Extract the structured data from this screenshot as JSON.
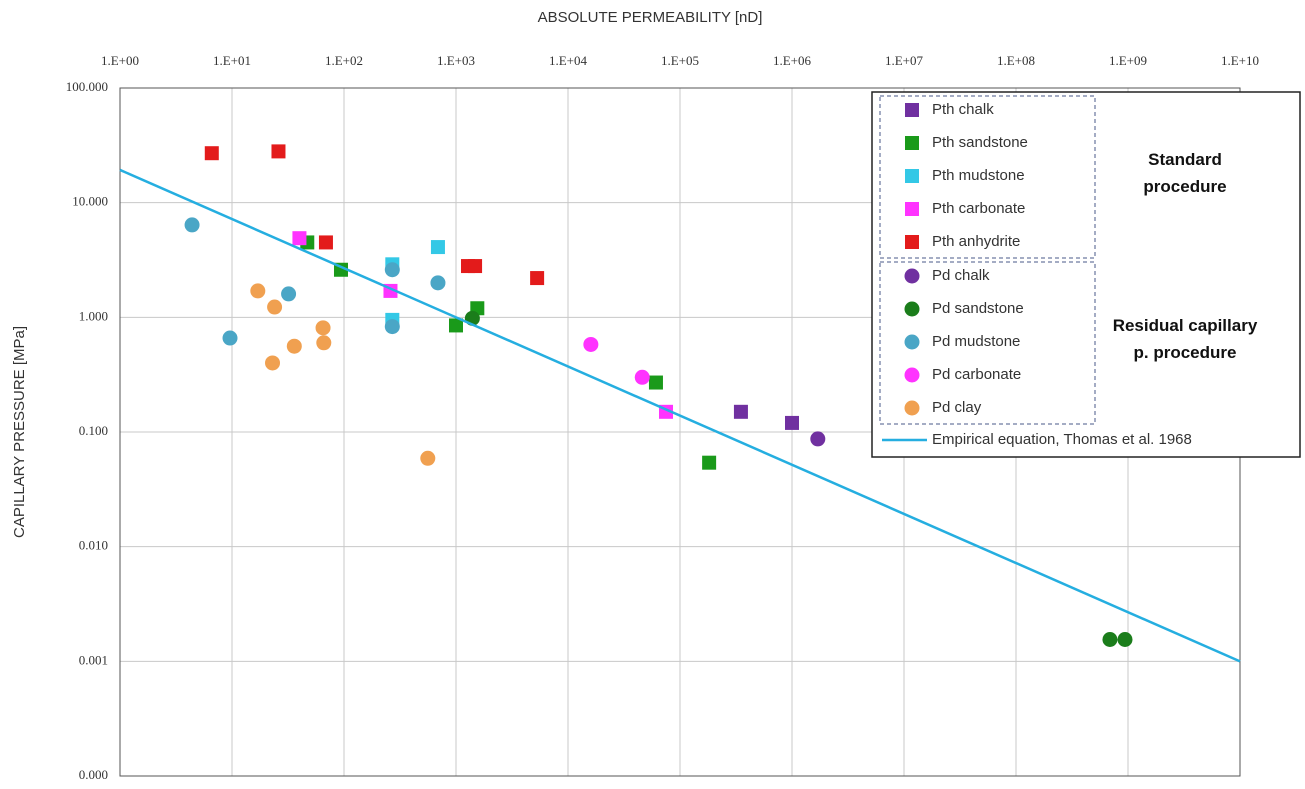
{
  "chart_data": {
    "type": "scatter",
    "x_label": "ABSOLUTE PERMEABILITY [nD]",
    "y_label": "CAPILLARY PRESSURE [MPa]",
    "x_log": true,
    "y_log": true,
    "grid": true,
    "xlim": [
      1,
      10000000000
    ],
    "ylim": [
      0.0001,
      100
    ],
    "xticks": [
      {
        "value": 1,
        "label": "1.E+00"
      },
      {
        "value": 10,
        "label": "1.E+01"
      },
      {
        "value": 100,
        "label": "1.E+02"
      },
      {
        "value": 1000,
        "label": "1.E+03"
      },
      {
        "value": 10000,
        "label": "1.E+04"
      },
      {
        "value": 100000,
        "label": "1.E+05"
      },
      {
        "value": 1000000,
        "label": "1.E+06"
      },
      {
        "value": 10000000,
        "label": "1.E+07"
      },
      {
        "value": 100000000,
        "label": "1.E+08"
      },
      {
        "value": 1000000000,
        "label": "1.E+09"
      },
      {
        "value": 10000000000,
        "label": "1.E+10"
      }
    ],
    "yticks": [
      {
        "value": 0.0001,
        "label": "0.000"
      },
      {
        "value": 0.001,
        "label": "0.001"
      },
      {
        "value": 0.01,
        "label": "0.010"
      },
      {
        "value": 0.1,
        "label": "0.100"
      },
      {
        "value": 1,
        "label": "1.000"
      },
      {
        "value": 10,
        "label": "10.000"
      },
      {
        "value": 100,
        "label": "100.000"
      }
    ],
    "legend_position": "upper right",
    "legend_groups": [
      {
        "label": [
          "Standard",
          "procedure"
        ]
      },
      {
        "label": [
          "Residual capillary",
          "p. procedure"
        ]
      }
    ],
    "series": [
      {
        "name": "Pth chalk",
        "marker": "square",
        "color": "#7030a0",
        "group": 0,
        "x": [
          350000,
          1000000
        ],
        "values": [
          0.15,
          0.12
        ]
      },
      {
        "name": "Pth sandstone",
        "marker": "square",
        "color": "#1a9a1a",
        "group": 0,
        "x": [
          47,
          94,
          1000,
          1550,
          61000,
          182000
        ],
        "values": [
          4.5,
          2.6,
          0.85,
          1.2,
          0.27,
          0.054
        ]
      },
      {
        "name": "Pth mudstone",
        "marker": "square",
        "color": "#33c8e6",
        "group": 0,
        "x": [
          270,
          270,
          690
        ],
        "values": [
          2.9,
          0.95,
          4.1
        ]
      },
      {
        "name": "Pth carbonate",
        "marker": "square",
        "color": "#ff33ff",
        "group": 0,
        "x": [
          40,
          260,
          75000
        ],
        "values": [
          4.9,
          1.7,
          0.15
        ]
      },
      {
        "name": "Pth anhydrite",
        "marker": "square",
        "color": "#e31b1b",
        "group": 0,
        "x": [
          6.6,
          26,
          69,
          1280,
          1480,
          5300
        ],
        "values": [
          27,
          28,
          4.5,
          2.8,
          2.8,
          2.2
        ]
      },
      {
        "name": "Pd chalk",
        "marker": "circle",
        "color": "#7030a0",
        "group": 1,
        "x": [
          1700000
        ],
        "values": [
          0.087
        ]
      },
      {
        "name": "Pd sandstone",
        "marker": "circle",
        "color": "#1b7d1b",
        "group": 1,
        "x": [
          1400,
          690000000,
          940000000
        ],
        "values": [
          0.98,
          0.00155,
          0.00155
        ]
      },
      {
        "name": "Pd mudstone",
        "marker": "circle",
        "color": "#4aa6c6",
        "group": 1,
        "x": [
          4.4,
          9.6,
          32,
          270,
          270,
          690
        ],
        "values": [
          6.4,
          0.66,
          1.6,
          2.6,
          0.83,
          2.0
        ]
      },
      {
        "name": "Pd carbonate",
        "marker": "circle",
        "color": "#ff33ff",
        "group": 1,
        "x": [
          16000,
          46000
        ],
        "values": [
          0.58,
          0.3
        ]
      },
      {
        "name": "Pd clay",
        "marker": "circle",
        "color": "#f0a050",
        "group": 1,
        "x": [
          17,
          24,
          23,
          36,
          65,
          66,
          560
        ],
        "values": [
          1.7,
          1.23,
          0.4,
          0.56,
          0.81,
          0.6,
          0.059
        ]
      },
      {
        "name": "Empirical equation, Thomas et al. 1968",
        "marker": "line",
        "color": "#25aee0",
        "x": [
          1,
          10000000000
        ],
        "values": [
          19.3,
          0.001
        ]
      }
    ]
  }
}
